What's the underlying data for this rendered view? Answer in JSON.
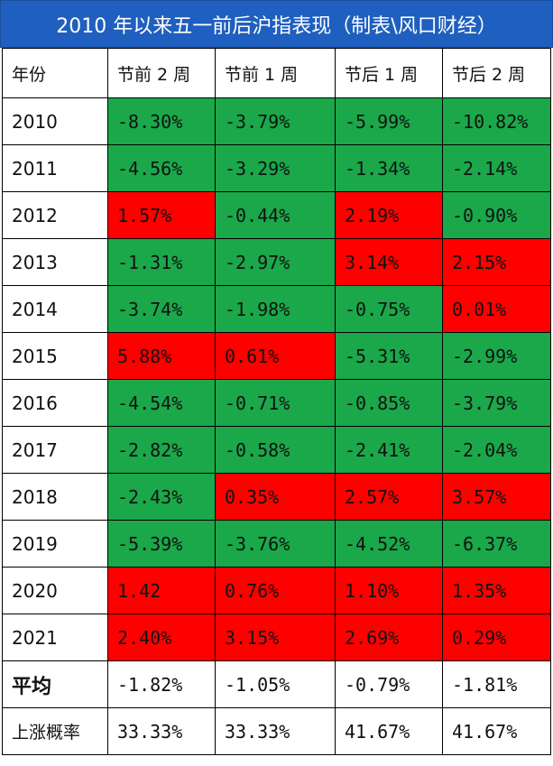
{
  "title": "2010 年以来五一前后沪指表现（制表\\风口财经）",
  "headers": [
    "年份",
    "节前 2 周",
    "节前 1 周",
    "节后 1 周",
    "节后 2 周"
  ],
  "rows": [
    {
      "year": "2010",
      "cells": [
        "-8.30%",
        "-3.79%",
        "-5.99%",
        "-10.82%"
      ]
    },
    {
      "year": "2011",
      "cells": [
        "-4.56%",
        "-3.29%",
        "-1.34%",
        "-2.14%"
      ]
    },
    {
      "year": "2012",
      "cells": [
        "1.57%",
        "-0.44%",
        "2.19%",
        "-0.90%"
      ]
    },
    {
      "year": "2013",
      "cells": [
        "-1.31%",
        "-2.97%",
        "3.14%",
        "2.15%"
      ]
    },
    {
      "year": "2014",
      "cells": [
        "-3.74%",
        "-1.98%",
        "-0.75%",
        "0.01%"
      ]
    },
    {
      "year": "2015",
      "cells": [
        "5.88%",
        "0.61%",
        "-5.31%",
        "-2.99%"
      ]
    },
    {
      "year": "2016",
      "cells": [
        "-4.54%",
        "-0.71%",
        "-0.85%",
        "-3.79%"
      ]
    },
    {
      "year": "2017",
      "cells": [
        "-2.82%",
        "-0.58%",
        "-2.41%",
        "-2.04%"
      ]
    },
    {
      "year": "2018",
      "cells": [
        "-2.43%",
        "0.35%",
        "2.57%",
        "3.57%"
      ]
    },
    {
      "year": "2019",
      "cells": [
        "-5.39%",
        "-3.76%",
        "-4.52%",
        "-6.37%"
      ]
    },
    {
      "year": "2020",
      "cells": [
        "1.42",
        "0.76%",
        "1.10%",
        "1.35%"
      ]
    },
    {
      "year": "2021",
      "cells": [
        "2.40%",
        "3.15%",
        "2.69%",
        "0.29%"
      ]
    }
  ],
  "average": {
    "label": "平均",
    "cells": [
      "-1.82%",
      "-1.05%",
      "-0.79%",
      "-1.81%"
    ]
  },
  "up_probability": {
    "label": "上涨概率",
    "cells": [
      "33.33%",
      "33.33%",
      "41.67%",
      "41.67%"
    ]
  },
  "colors": {
    "positive": "#ff0000",
    "negative": "#1aa84a",
    "title_bar": "#1f5fbf"
  }
}
